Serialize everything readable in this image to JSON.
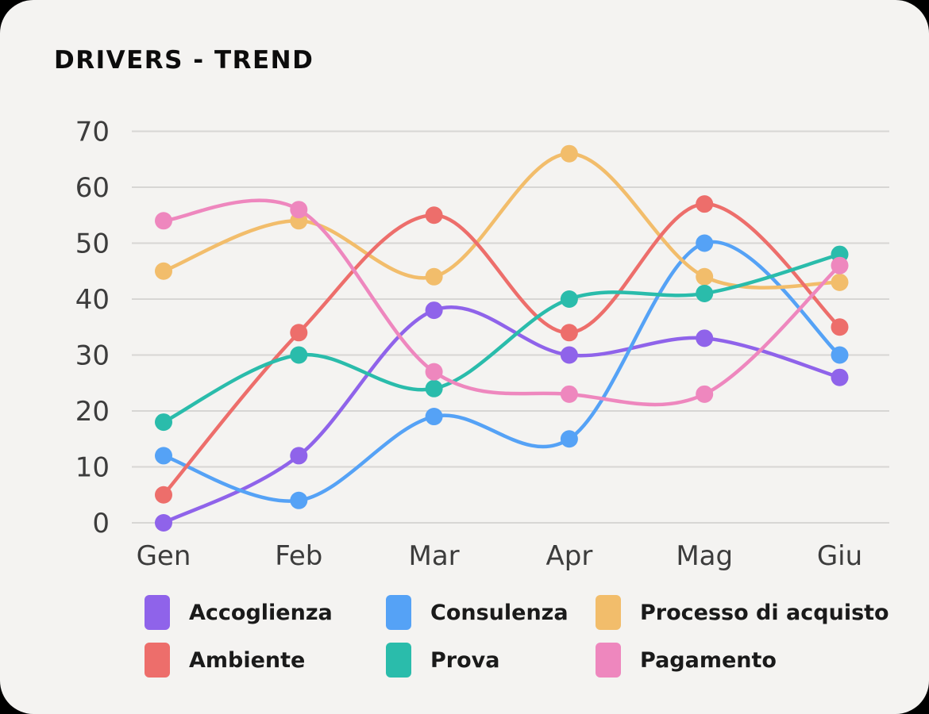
{
  "page": {
    "title": "DRIVERS - TREND"
  },
  "chart_data": {
    "type": "line",
    "curve": "smooth",
    "grid": true,
    "legend_position": "bottom",
    "categories": [
      "Gen",
      "Feb",
      "Mar",
      "Apr",
      "Mag",
      "Giu"
    ],
    "yticks": [
      0,
      10,
      20,
      30,
      40,
      50,
      60,
      70
    ],
    "ylim": [
      0,
      70
    ],
    "series": [
      {
        "name": "Accoglienza",
        "color": "#8f63ea",
        "values": [
          0,
          12,
          38,
          30,
          33,
          26
        ]
      },
      {
        "name": "Consulenza",
        "color": "#55a2f6",
        "values": [
          12,
          4,
          19,
          15,
          50,
          30
        ]
      },
      {
        "name": "Processo di acquisto",
        "color": "#f2bd6b",
        "values": [
          45,
          54,
          44,
          66,
          44,
          43
        ]
      },
      {
        "name": "Ambiente",
        "color": "#ed6e6b",
        "values": [
          5,
          34,
          55,
          34,
          57,
          35
        ]
      },
      {
        "name": "Prova",
        "color": "#2abcab",
        "values": [
          18,
          30,
          24,
          40,
          41,
          48
        ]
      },
      {
        "name": "Pagamento",
        "color": "#ee87be",
        "values": [
          54,
          56,
          27,
          23,
          23,
          46
        ]
      }
    ],
    "colors": {
      "background": "#f4f3f1",
      "gridline": "#d7d6d4",
      "tick_text": "#3c3c3c",
      "title_text": "#0c0c0c"
    }
  }
}
